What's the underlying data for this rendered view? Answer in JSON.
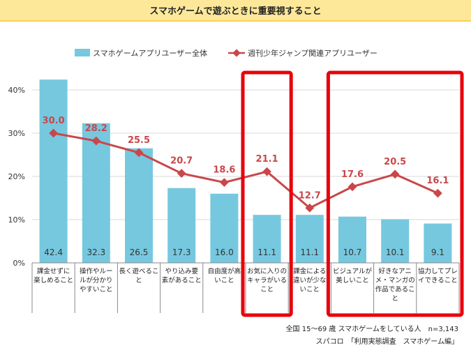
{
  "title": "スマホゲームで遊ぶときに重要視すること",
  "chart_data": {
    "type": "bar",
    "title": "スマホゲームで遊ぶときに重要視すること",
    "ylim": [
      0,
      40
    ],
    "yticks": [
      "0%",
      "10%",
      "20%",
      "30%",
      "40%"
    ],
    "ytick_values": [
      0,
      10,
      20,
      30,
      40
    ],
    "legend_position": "top",
    "categories": [
      [
        "課金せずに",
        "楽しめること"
      ],
      [
        "操作やルー",
        "ルが分かり",
        "やすいこと"
      ],
      [
        "長く遊べるこ",
        "と"
      ],
      [
        "やり込み要",
        "素があること"
      ],
      [
        "自由度が高",
        "いこと"
      ],
      [
        "お気に入りの",
        "キャラがいる",
        "こと"
      ],
      [
        "課金による",
        "違いが少な",
        "いこと"
      ],
      [
        "ビジュアルが",
        "美しいこと"
      ],
      [
        "好きなアニ",
        "メ・マンガの",
        "作品であるこ",
        "と"
      ],
      [
        "協力してプレ",
        "イできること"
      ]
    ],
    "series": [
      {
        "name": "スマホゲームアプリユーザー全体",
        "type": "bar",
        "color": "#76c8df",
        "values": [
          42.4,
          32.3,
          26.5,
          17.3,
          16.0,
          11.1,
          11.1,
          10.7,
          10.1,
          9.1
        ],
        "labels": [
          "42.4",
          "32.3",
          "26.5",
          "17.3",
          "16.0",
          "11.1",
          "11.1",
          "10.7",
          "10.1",
          "9.1"
        ]
      },
      {
        "name": "週刊少年ジャンプ関連アプリユーザー",
        "type": "line",
        "color": "#c9474a",
        "values": [
          30.0,
          28.2,
          25.5,
          20.7,
          18.6,
          21.1,
          12.7,
          17.6,
          20.5,
          16.1
        ],
        "labels": [
          "30.0",
          "28.2",
          "25.5",
          "20.7",
          "18.6",
          "21.1",
          "12.7",
          "17.6",
          "20.5",
          "16.1"
        ]
      }
    ],
    "highlights": [
      [
        5,
        5
      ],
      [
        7,
        9
      ]
    ],
    "highlight_color": "#e8000b"
  },
  "footnote": {
    "line1": "全国 15～69 歳 スマホゲームをしている人　n=3,143",
    "line2": "スパコロ　「利用実態調査　スマホゲーム編」"
  }
}
